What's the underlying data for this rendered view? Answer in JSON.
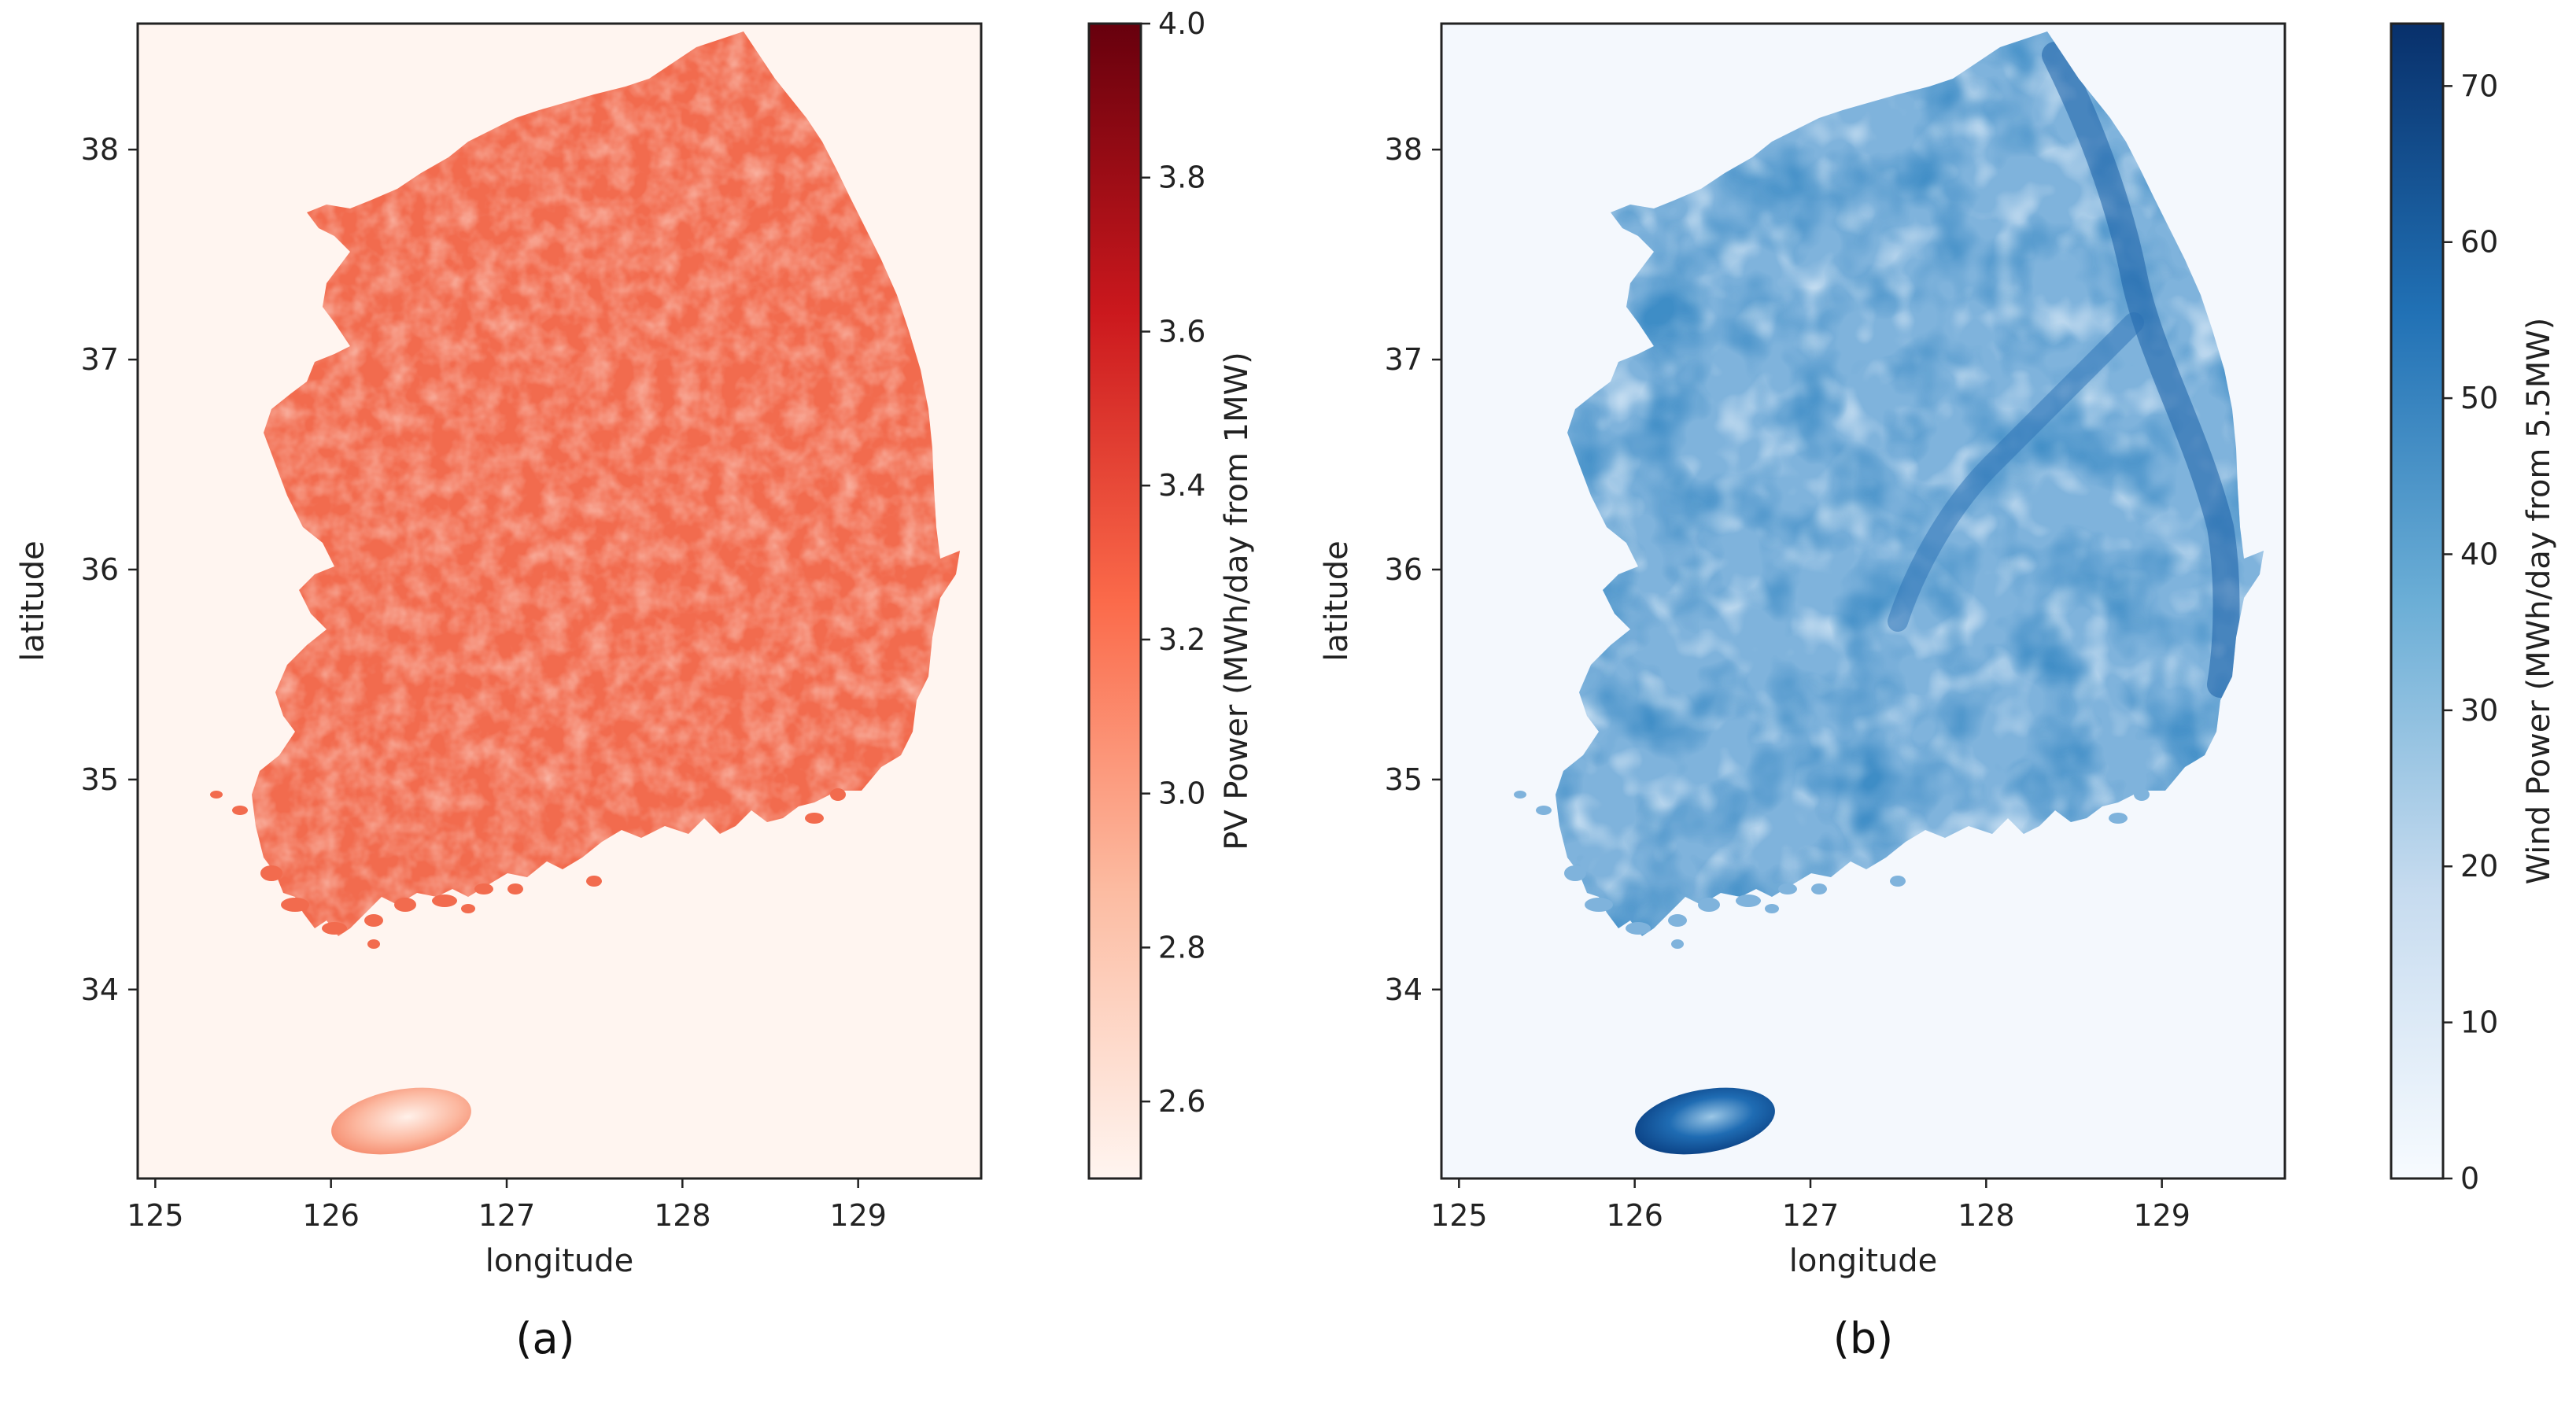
{
  "panels": [
    {
      "id": "a",
      "caption": "(a)",
      "xlabel": "longitude",
      "ylabel": "latitude",
      "x_ticks": [
        "125",
        "126",
        "127",
        "128",
        "129"
      ],
      "y_ticks": [
        "34",
        "35",
        "36",
        "37",
        "38"
      ],
      "colorbar": {
        "label": "PV Power (MWh/day from 1MW)",
        "ticks": [
          "2.6",
          "2.8",
          "3.0",
          "3.2",
          "3.4",
          "3.6",
          "3.8",
          "4.0"
        ],
        "range": [
          2.5,
          4.0
        ],
        "colormap": "Reds",
        "colors": [
          "#fff5f0",
          "#fcbba1",
          "#fb6a4a",
          "#cb181d",
          "#67000d"
        ]
      },
      "background_color": "#fff5f0",
      "land_color": "#f26b4e"
    },
    {
      "id": "b",
      "caption": "(b)",
      "xlabel": "longitude",
      "ylabel": "latitude",
      "x_ticks": [
        "125",
        "126",
        "127",
        "128",
        "129"
      ],
      "y_ticks": [
        "34",
        "35",
        "36",
        "37",
        "38"
      ],
      "colorbar": {
        "label": "Wind Power (MWh/day from 5.5MW)",
        "ticks": [
          "0",
          "10",
          "20",
          "30",
          "40",
          "50",
          "60",
          "70"
        ],
        "range": [
          0,
          74
        ],
        "colormap": "Blues",
        "colors": [
          "#f7fbff",
          "#c6dbef",
          "#6baed6",
          "#2171b5",
          "#08306b"
        ]
      },
      "background_color": "#f4f8fd",
      "land_color": "#7fb3dc"
    }
  ]
}
